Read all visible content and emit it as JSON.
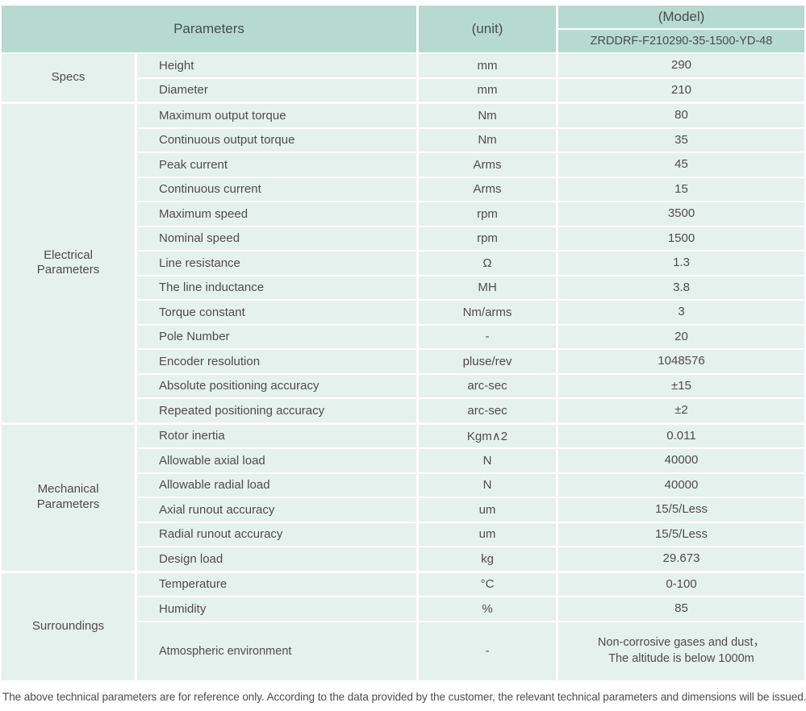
{
  "header": {
    "parameters_label": "Parameters",
    "unit_label": "(unit)",
    "model_label": "(Model)",
    "model_number": "ZRDDRF-F210290-35-1500-YD-48"
  },
  "colors": {
    "header_bg": "#b6dacf",
    "cell_bg": "#e5f1ed",
    "text": "#4d4d4d"
  },
  "sections": [
    {
      "label": "Specs",
      "rows": [
        {
          "name": "Height",
          "unit": "mm",
          "value": "290"
        },
        {
          "name": "Diameter",
          "unit": "mm",
          "value": "210"
        }
      ]
    },
    {
      "label": "Electrical\nParameters",
      "rows": [
        {
          "name": "Maximum output torque",
          "unit": "Nm",
          "value": "80"
        },
        {
          "name": "Continuous output torque",
          "unit": "Nm",
          "value": "35"
        },
        {
          "name": "Peak current",
          "unit": "Arms",
          "value": "45"
        },
        {
          "name": "Continuous current",
          "unit": "Arms",
          "value": "15"
        },
        {
          "name": "Maximum speed",
          "unit": "rpm",
          "value": "3500"
        },
        {
          "name": "Nominal speed",
          "unit": "rpm",
          "value": "1500"
        },
        {
          "name": "Line resistance",
          "unit": "Ω",
          "value": "1.3"
        },
        {
          "name": "The line inductance",
          "unit": "MH",
          "value": "3.8"
        },
        {
          "name": "Torque constant",
          "unit": "Nm/arms",
          "value": "3"
        },
        {
          "name": "Pole Number",
          "unit": "-",
          "value": "20"
        },
        {
          "name": "Encoder resolution",
          "unit": "pluse/rev",
          "value": "1048576"
        },
        {
          "name": "Absolute positioning accuracy",
          "unit": "arc-sec",
          "value": "±15"
        },
        {
          "name": "Repeated positioning accuracy",
          "unit": "arc-sec",
          "value": "±2"
        }
      ]
    },
    {
      "label": "Mechanical\nParameters",
      "rows": [
        {
          "name": "Rotor inertia",
          "unit": "Kgm∧2",
          "value": "0.011"
        },
        {
          "name": "Allowable axial load",
          "unit": "N",
          "value": "40000"
        },
        {
          "name": "Allowable radial load",
          "unit": "N",
          "value": "40000"
        },
        {
          "name": "Axial runout accuracy",
          "unit": "um",
          "value": "15/5/Less"
        },
        {
          "name": "Radial runout accuracy",
          "unit": "um",
          "value": "15/5/Less"
        },
        {
          "name": "Design load",
          "unit": "kg",
          "value": "29.673"
        }
      ]
    },
    {
      "label": "Surroundings",
      "rows": [
        {
          "name": "Temperature",
          "unit": "°C",
          "value": "0-100"
        },
        {
          "name": "Humidity",
          "unit": "%",
          "value": "85"
        },
        {
          "name": "Atmospheric environment",
          "unit": "-",
          "value": "Non-corrosive gases and dust，\nThe altitude is below 1000m"
        }
      ]
    }
  ],
  "footnote": "The above technical parameters are for reference only. According to the data provided by the customer, the relevant technical parameters and dimensions will be issued."
}
